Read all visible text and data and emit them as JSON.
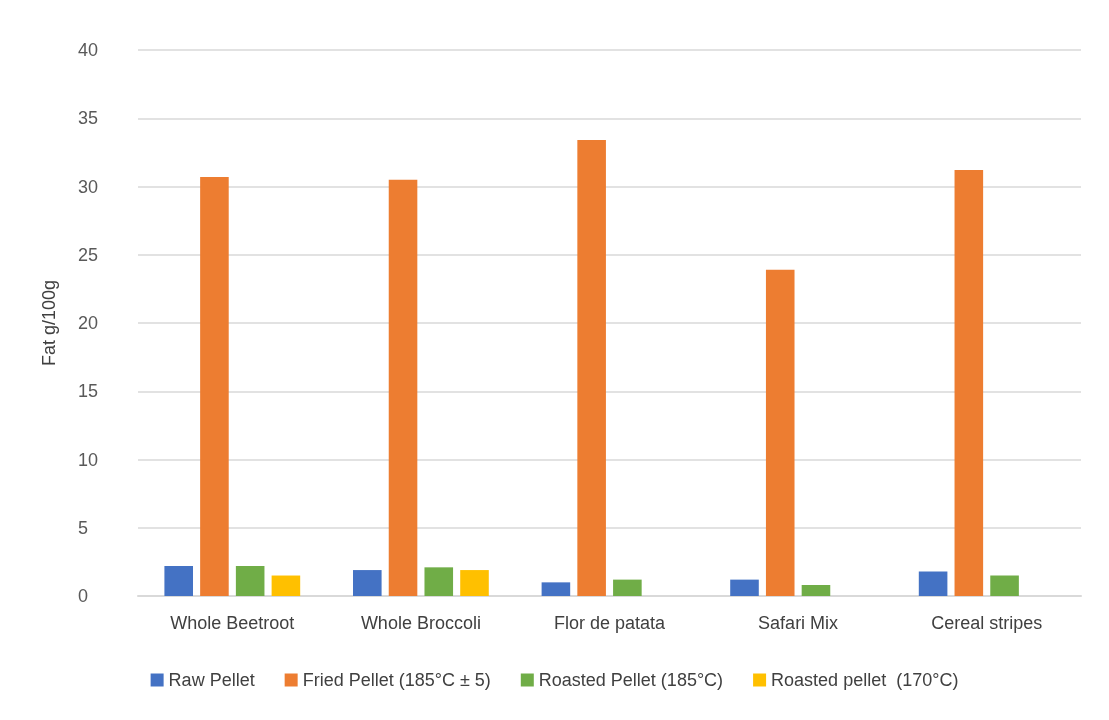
{
  "chart_data": {
    "type": "bar",
    "ylabel": "Fat g/100g",
    "categories": [
      "Whole Beetroot",
      "Whole Broccoli",
      "Flor de patata",
      "Safari Mix",
      "Cereal stripes"
    ],
    "series": [
      {
        "name": "Raw Pellet",
        "color": "#4472c4",
        "values": [
          2.2,
          1.9,
          1.0,
          1.2,
          1.8
        ]
      },
      {
        "name": "Fried Pellet (185°C ± 5)",
        "color": "#ed7d31",
        "values": [
          30.7,
          30.5,
          33.4,
          23.9,
          31.2
        ]
      },
      {
        "name": "Roasted Pellet (185°C)",
        "color": "#70ad47",
        "values": [
          2.2,
          2.1,
          1.2,
          0.8,
          1.5
        ]
      },
      {
        "name": "Roasted pellet  (170°C)",
        "color": "#ffc000",
        "values": [
          1.5,
          1.9,
          null,
          null,
          null
        ]
      }
    ],
    "ylim": [
      0,
      40
    ],
    "yticks": [
      0,
      5,
      10,
      15,
      20,
      25,
      30,
      35,
      40
    ],
    "grid": "y",
    "legend": "bottom"
  }
}
